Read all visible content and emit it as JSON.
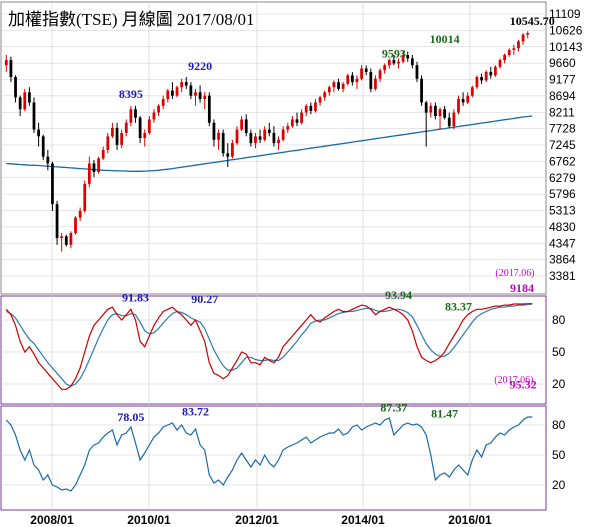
{
  "title": "加權指數(TSE)  月線圖  2017/08/01",
  "colors": {
    "up": "#e00000",
    "down": "#000000",
    "ma": "#1a6aa8",
    "k_line": "#cc0000",
    "d_line": "#2a7ab8",
    "rsi_line": "#1a6aa8",
    "grid": "#cccccc",
    "panel_border": "#7a3a9a",
    "ann_blue": "#1a1ab8",
    "ann_green": "#1a6a1a",
    "ann_magenta": "#cc00cc"
  },
  "x_labels": [
    "2008/01",
    "2010/01",
    "2012/01",
    "2014/01",
    "2016/01"
  ],
  "chart_data": [
    {
      "type": "candlestick",
      "title": "加權指數(TSE)  月線圖  2017/08/01",
      "y_ticks": [
        11109,
        10626,
        10143,
        9660,
        9177,
        8694,
        8211,
        7728,
        7245,
        6762,
        6279,
        5796,
        5313,
        4830,
        4347,
        3864,
        3381
      ],
      "ylim": [
        3381,
        11109
      ],
      "annotations": [
        {
          "text": "8395",
          "t": 27,
          "y": 8395,
          "color": "blue"
        },
        {
          "text": "9220",
          "t": 42,
          "y": 9220,
          "color": "blue"
        },
        {
          "text": "9593",
          "t": 84,
          "y": 9593,
          "color": "green"
        },
        {
          "text": "10014",
          "t": 95,
          "y": 10014,
          "color": "green"
        },
        {
          "text": "10545.70",
          "t": 114,
          "y": 10545.7,
          "color": "black"
        }
      ],
      "candles": [
        [
          9600,
          9900,
          9400,
          9750
        ],
        [
          9750,
          9850,
          9100,
          9250
        ],
        [
          9250,
          9300,
          8500,
          8650
        ],
        [
          8650,
          8700,
          8100,
          8300
        ],
        [
          8300,
          8900,
          8250,
          8800
        ],
        [
          8800,
          8950,
          8400,
          8500
        ],
        [
          8500,
          8650,
          7600,
          7700
        ],
        [
          7700,
          7900,
          7200,
          7500
        ],
        [
          7500,
          7550,
          6800,
          6900
        ],
        [
          6900,
          7100,
          6500,
          6700
        ],
        [
          6700,
          6750,
          5300,
          5500
        ],
        [
          5500,
          5600,
          4300,
          4500
        ],
        [
          4500,
          4650,
          4100,
          4550
        ],
        [
          4550,
          4600,
          4250,
          4300
        ],
        [
          4300,
          4700,
          4200,
          4650
        ],
        [
          4650,
          5150,
          4600,
          5100
        ],
        [
          5100,
          5400,
          5000,
          5300
        ],
        [
          5300,
          6200,
          5250,
          6100
        ],
        [
          6100,
          6900,
          6000,
          6700
        ],
        [
          6700,
          6800,
          6300,
          6450
        ],
        [
          6450,
          6900,
          6400,
          6850
        ],
        [
          6850,
          7200,
          6800,
          7100
        ],
        [
          7100,
          7600,
          7000,
          7500
        ],
        [
          7500,
          7900,
          7450,
          7750
        ],
        [
          7750,
          7900,
          7100,
          7250
        ],
        [
          7250,
          7700,
          7150,
          7600
        ],
        [
          7600,
          8000,
          7500,
          7900
        ],
        [
          7900,
          8400,
          7800,
          8300
        ],
        [
          8300,
          8400,
          7900,
          8050
        ],
        [
          8050,
          8100,
          7300,
          7450
        ],
        [
          7450,
          7700,
          7200,
          7600
        ],
        [
          7600,
          8100,
          7550,
          8000
        ],
        [
          8000,
          8300,
          7900,
          8200
        ],
        [
          8200,
          8450,
          8100,
          8400
        ],
        [
          8400,
          8700,
          8300,
          8600
        ],
        [
          8600,
          8900,
          8500,
          8850
        ],
        [
          8850,
          9100,
          8600,
          8700
        ],
        [
          8700,
          9000,
          8650,
          8950
        ],
        [
          8950,
          9200,
          8800,
          9100
        ],
        [
          9100,
          9250,
          8900,
          9000
        ],
        [
          9000,
          9100,
          8600,
          8700
        ],
        [
          8700,
          8900,
          8400,
          8800
        ],
        [
          8800,
          9000,
          8500,
          8600
        ],
        [
          8600,
          8800,
          8300,
          8700
        ],
        [
          8700,
          8800,
          7800,
          7900
        ],
        [
          7900,
          8000,
          7200,
          7400
        ],
        [
          7400,
          7700,
          7100,
          7600
        ],
        [
          7600,
          7700,
          6900,
          7000
        ],
        [
          7000,
          7300,
          6600,
          6900
        ],
        [
          6900,
          7400,
          6850,
          7300
        ],
        [
          7300,
          7800,
          7250,
          7700
        ],
        [
          7700,
          8100,
          7650,
          8000
        ],
        [
          8000,
          8150,
          7500,
          7600
        ],
        [
          7600,
          7700,
          7200,
          7300
        ],
        [
          7300,
          7600,
          7150,
          7500
        ],
        [
          7500,
          7700,
          7300,
          7400
        ],
        [
          7400,
          7800,
          7350,
          7700
        ],
        [
          7700,
          7900,
          7500,
          7600
        ],
        [
          7600,
          7800,
          7200,
          7300
        ],
        [
          7300,
          7500,
          7100,
          7400
        ],
        [
          7400,
          7800,
          7350,
          7700
        ],
        [
          7700,
          7900,
          7600,
          7800
        ],
        [
          7800,
          8100,
          7750,
          8000
        ],
        [
          8000,
          8200,
          7800,
          7900
        ],
        [
          7900,
          8300,
          7850,
          8200
        ],
        [
          8200,
          8450,
          8100,
          8400
        ],
        [
          8400,
          8500,
          8150,
          8250
        ],
        [
          8250,
          8600,
          8200,
          8500
        ],
        [
          8500,
          8700,
          8400,
          8650
        ],
        [
          8650,
          8850,
          8550,
          8800
        ],
        [
          8800,
          9000,
          8700,
          8950
        ],
        [
          8950,
          9150,
          8800,
          9100
        ],
        [
          9100,
          9200,
          8850,
          8900
        ],
        [
          8900,
          9100,
          8800,
          9050
        ],
        [
          9050,
          9350,
          9000,
          9300
        ],
        [
          9300,
          9400,
          9000,
          9100
        ],
        [
          9100,
          9300,
          8900,
          9200
        ],
        [
          9200,
          9600,
          9150,
          9500
        ],
        [
          9500,
          9593,
          9300,
          9400
        ],
        [
          9400,
          9500,
          8800,
          8900
        ],
        [
          8900,
          9300,
          8850,
          9200
        ],
        [
          9200,
          9500,
          9100,
          9450
        ],
        [
          9450,
          9650,
          9350,
          9600
        ],
        [
          9600,
          9800,
          9500,
          9750
        ],
        [
          9750,
          9900,
          9600,
          9650
        ],
        [
          9650,
          9800,
          9500,
          9700
        ],
        [
          9700,
          10014,
          9650,
          9900
        ],
        [
          9900,
          10000,
          9700,
          9800
        ],
        [
          9800,
          9900,
          9500,
          9600
        ],
        [
          9600,
          9700,
          9100,
          9200
        ],
        [
          9200,
          9300,
          8400,
          8500
        ],
        [
          8500,
          8550,
          7200,
          8200
        ],
        [
          8200,
          8500,
          8050,
          8400
        ],
        [
          8400,
          8500,
          8000,
          8100
        ],
        [
          8100,
          8350,
          7700,
          8300
        ],
        [
          8300,
          8400,
          8000,
          8050
        ],
        [
          8050,
          8200,
          7750,
          7800
        ],
        [
          7800,
          8300,
          7700,
          8200
        ],
        [
          8200,
          8700,
          8150,
          8600
        ],
        [
          8600,
          8800,
          8400,
          8500
        ],
        [
          8500,
          8800,
          8450,
          8700
        ],
        [
          8700,
          9000,
          8650,
          8950
        ],
        [
          8950,
          9300,
          8900,
          9250
        ],
        [
          9250,
          9350,
          9050,
          9150
        ],
        [
          9150,
          9450,
          9100,
          9400
        ],
        [
          9400,
          9550,
          9200,
          9300
        ],
        [
          9300,
          9600,
          9250,
          9550
        ],
        [
          9550,
          9800,
          9500,
          9750
        ],
        [
          9750,
          9950,
          9650,
          9900
        ],
        [
          9900,
          10100,
          9850,
          10050
        ],
        [
          10050,
          10200,
          9900,
          10100
        ],
        [
          10100,
          10350,
          10000,
          10300
        ],
        [
          10300,
          10550,
          10200,
          10500
        ],
        [
          10500,
          10600,
          10400,
          10545.7
        ]
      ],
      "ma": [
        6700,
        6690,
        6680,
        6670,
        6660,
        6650,
        6645,
        6640,
        6630,
        6620,
        6610,
        6600,
        6590,
        6580,
        6570,
        6560,
        6550,
        6540,
        6530,
        6520,
        6510,
        6500,
        6495,
        6490,
        6485,
        6480,
        6475,
        6470,
        6470,
        6470,
        6475,
        6480,
        6490,
        6500,
        6515,
        6530,
        6550,
        6570,
        6590,
        6610,
        6630,
        6650,
        6670,
        6690,
        6710,
        6730,
        6750,
        6770,
        6790,
        6810,
        6830,
        6850,
        6870,
        6890,
        6910,
        6930,
        6950,
        6970,
        6990,
        7010,
        7030,
        7050,
        7070,
        7090,
        7110,
        7130,
        7150,
        7170,
        7190,
        7210,
        7230,
        7250,
        7270,
        7290,
        7310,
        7330,
        7350,
        7370,
        7390,
        7410,
        7430,
        7450,
        7470,
        7490,
        7510,
        7530,
        7550,
        7570,
        7590,
        7610,
        7630,
        7650,
        7670,
        7690,
        7710,
        7730,
        7750,
        7770,
        7790,
        7810,
        7830,
        7850,
        7870,
        7890,
        7910,
        7930,
        7950,
        7970,
        7990,
        8010,
        8030,
        8050,
        8070,
        8085,
        8100
      ]
    },
    {
      "type": "line",
      "name": "KD",
      "y_ticks": [
        80,
        50,
        20
      ],
      "ylim": [
        5,
        100
      ],
      "annotations": [
        {
          "text": "91.83",
          "t": 28,
          "y": 91.83,
          "color": "blue"
        },
        {
          "text": "90.27",
          "t": 43,
          "y": 90.27,
          "color": "blue"
        },
        {
          "text": "93.94",
          "t": 85,
          "y": 93.94,
          "color": "green"
        },
        {
          "text": "83.37",
          "t": 98,
          "y": 83.37,
          "color": "green"
        },
        {
          "text": "(2017.06)",
          "t": 110,
          "y": 21,
          "color": "magenta",
          "small": true
        },
        {
          "text": "95.32",
          "t": 112,
          "y": 10,
          "color": "magenta"
        }
      ],
      "k": [
        90,
        85,
        75,
        60,
        50,
        55,
        48,
        40,
        35,
        30,
        25,
        20,
        15,
        15,
        18,
        25,
        35,
        50,
        65,
        75,
        80,
        85,
        90,
        92,
        85,
        80,
        85,
        90,
        80,
        60,
        55,
        65,
        75,
        82,
        88,
        90,
        92,
        88,
        85,
        80,
        75,
        80,
        70,
        60,
        40,
        30,
        28,
        25,
        28,
        35,
        42,
        50,
        48,
        40,
        40,
        38,
        45,
        42,
        40,
        45,
        55,
        60,
        65,
        70,
        75,
        80,
        85,
        80,
        78,
        82,
        85,
        88,
        90,
        88,
        88,
        90,
        92,
        94,
        93,
        90,
        85,
        88,
        90,
        92,
        90,
        88,
        85,
        80,
        70,
        55,
        45,
        42,
        40,
        42,
        45,
        50,
        58,
        65,
        72,
        80,
        85,
        88,
        90,
        90,
        91,
        92,
        93,
        93,
        94,
        94,
        95,
        95,
        95,
        95.3,
        95.32
      ],
      "d": [
        88,
        86,
        82,
        75,
        68,
        62,
        58,
        52,
        46,
        40,
        35,
        30,
        25,
        20,
        18,
        20,
        25,
        33,
        43,
        53,
        63,
        72,
        80,
        85,
        86,
        84,
        84,
        86,
        85,
        78,
        70,
        67,
        68,
        72,
        77,
        82,
        86,
        88,
        87,
        85,
        82,
        80,
        78,
        72,
        62,
        52,
        44,
        37,
        33,
        33,
        35,
        40,
        45,
        45,
        43,
        42,
        42,
        43,
        42,
        42,
        45,
        50,
        55,
        60,
        66,
        71,
        77,
        79,
        80,
        80,
        82,
        84,
        86,
        87,
        88,
        88,
        89,
        90,
        91,
        91,
        89,
        88,
        88,
        89,
        90,
        90,
        89,
        87,
        83,
        75,
        66,
        58,
        52,
        48,
        46,
        46,
        49,
        54,
        60,
        66,
        72,
        78,
        83,
        86,
        88,
        90,
        91,
        92,
        92,
        93,
        93,
        94,
        94,
        94.5,
        95
      ]
    },
    {
      "type": "line",
      "name": "RSI",
      "y_ticks": [
        80,
        50,
        20
      ],
      "ylim": [
        5,
        100
      ],
      "annotations": [
        {
          "text": "78.05",
          "t": 27,
          "y": 78.05,
          "color": "blue"
        },
        {
          "text": "83.72",
          "t": 41,
          "y": 83.72,
          "color": "blue"
        },
        {
          "text": "87.37",
          "t": 84,
          "y": 87.37,
          "color": "green"
        },
        {
          "text": "81.47",
          "t": 95,
          "y": 81.47,
          "color": "green"
        }
      ],
      "values": [
        85,
        80,
        70,
        55,
        45,
        55,
        40,
        35,
        25,
        30,
        20,
        18,
        15,
        16,
        14,
        20,
        30,
        40,
        55,
        60,
        62,
        68,
        72,
        75,
        60,
        70,
        72,
        78,
        62,
        45,
        52,
        60,
        68,
        72,
        78,
        80,
        82,
        75,
        80,
        72,
        70,
        76,
        60,
        55,
        30,
        22,
        25,
        20,
        28,
        35,
        45,
        52,
        45,
        38,
        45,
        40,
        50,
        42,
        38,
        45,
        55,
        58,
        60,
        62,
        65,
        68,
        62,
        65,
        68,
        70,
        72,
        72,
        76,
        70,
        72,
        78,
        80,
        75,
        78,
        80,
        82,
        80,
        85,
        87,
        70,
        75,
        80,
        82,
        80,
        81,
        78,
        70,
        50,
        25,
        30,
        32,
        28,
        35,
        40,
        35,
        30,
        45,
        55,
        48,
        60,
        62,
        68,
        72,
        70,
        75,
        78,
        80,
        85,
        88,
        88
      ]
    }
  ]
}
